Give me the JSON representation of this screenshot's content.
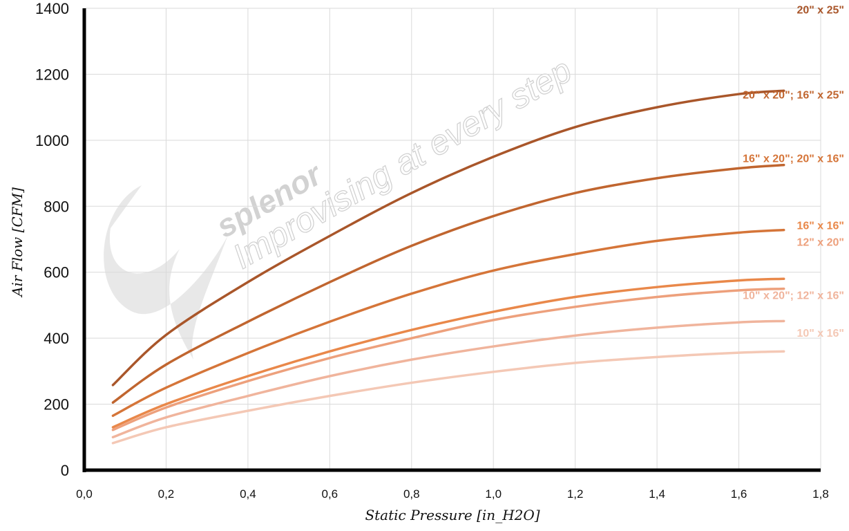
{
  "chart_data": {
    "type": "line",
    "title": "",
    "xlabel": "Static Pressure [in_H2O]",
    "ylabel": "Air Flow [CFM]",
    "xlim": [
      0,
      1.8
    ],
    "ylim": [
      0,
      1400
    ],
    "x_ticks": [
      "0,0",
      "0,2",
      "0,4",
      "0,6",
      "0,8",
      "1,0",
      "1,2",
      "1,4",
      "1,6",
      "1,8"
    ],
    "y_ticks": [
      "0",
      "200",
      "400",
      "600",
      "800",
      "1000",
      "1200",
      "1400"
    ],
    "grid": true,
    "x": [
      0.07,
      0.2,
      0.4,
      0.6,
      0.8,
      1.0,
      1.2,
      1.4,
      1.6,
      1.71
    ],
    "series": [
      {
        "name": "20\" x 25\"",
        "color": "#a9562a",
        "values": [
          258,
          410,
          570,
          710,
          840,
          950,
          1040,
          1100,
          1140,
          1150
        ]
      },
      {
        "name": "20\" x 20\"; 16\" x 25\"",
        "color": "#c0652f",
        "values": [
          205,
          320,
          450,
          570,
          680,
          770,
          840,
          885,
          915,
          925
        ]
      },
      {
        "name": "16\" x 20\"; 20\" x 16\"",
        "color": "#d57539",
        "values": [
          165,
          250,
          355,
          450,
          535,
          605,
          655,
          695,
          720,
          728
        ]
      },
      {
        "name": "16\" x 16\"",
        "color": "#e9884a",
        "values": [
          130,
          200,
          285,
          360,
          425,
          480,
          525,
          555,
          575,
          580
        ]
      },
      {
        "name": "12\" x 20\"",
        "color": "#eda07c",
        "values": [
          122,
          190,
          270,
          340,
          400,
          455,
          495,
          525,
          545,
          550
        ]
      },
      {
        "name": "10\" x 20\"; 12\" x 16\"",
        "color": "#f0b49c",
        "values": [
          100,
          160,
          225,
          285,
          335,
          375,
          408,
          432,
          448,
          452
        ]
      },
      {
        "name": "10\" x 16\"",
        "color": "#f4c8b5",
        "values": [
          82,
          130,
          180,
          225,
          265,
          298,
          325,
          343,
          356,
          360
        ]
      }
    ]
  },
  "watermark": {
    "brand": "splenor",
    "tagline": "Improvising at every step"
  }
}
